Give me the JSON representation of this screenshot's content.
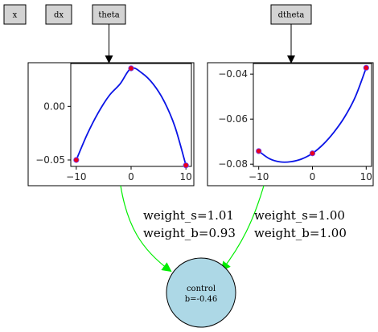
{
  "inputs": [
    {
      "id": "x",
      "label": "x"
    },
    {
      "id": "dx",
      "label": "dx"
    },
    {
      "id": "theta",
      "label": "theta"
    },
    {
      "id": "dtheta",
      "label": "dtheta"
    }
  ],
  "control": {
    "label": "control",
    "bias_text": "b=-0.46"
  },
  "edge_colors": {
    "input": "#000000",
    "output": "#00ee00"
  },
  "chart_data": [
    {
      "type": "line",
      "input": "theta",
      "title": "",
      "xlabel": "",
      "ylabel": "",
      "xlim": [
        -11,
        11
      ],
      "ylim": [
        -0.056,
        0.04
      ],
      "xticks": [
        -10,
        0,
        10
      ],
      "xtick_labels": [
        "−10",
        "0",
        "10"
      ],
      "yticks": [
        0.0,
        -0.05
      ],
      "ytick_labels": [
        "0.00",
        "−0.05"
      ],
      "series": [
        {
          "x": [
            -10,
            -8,
            -6,
            -4,
            -2,
            0,
            2,
            4,
            6,
            8,
            10
          ],
          "y": [
            -0.05,
            -0.026,
            -0.006,
            0.01,
            0.021,
            0.0355,
            0.031,
            0.021,
            0.005,
            -0.019,
            -0.055
          ],
          "color": "#0a14e6"
        }
      ],
      "points": {
        "x": [
          -10,
          0,
          10
        ],
        "y": [
          -0.05,
          0.0355,
          -0.055
        ],
        "color": "#e8001c"
      },
      "grid": false
    },
    {
      "type": "line",
      "input": "dtheta",
      "title": "",
      "xlabel": "",
      "ylabel": "",
      "xlim": [
        -11,
        11
      ],
      "ylim": [
        -0.081,
        -0.0353
      ],
      "xticks": [
        -10,
        0,
        10
      ],
      "xtick_labels": [
        "−10",
        "0",
        "10"
      ],
      "yticks": [
        -0.04,
        -0.06,
        -0.08
      ],
      "ytick_labels": [
        "−0.04",
        "−0.06",
        "−0.08"
      ],
      "series": [
        {
          "x": [
            -10,
            -8,
            -6,
            -4,
            -2,
            0,
            2,
            4,
            6,
            8,
            10
          ],
          "y": [
            -0.0742,
            -0.0776,
            -0.079,
            -0.0789,
            -0.0777,
            -0.0752,
            -0.0712,
            -0.0658,
            -0.059,
            -0.05,
            -0.0372
          ],
          "color": "#0a14e6"
        }
      ],
      "points": {
        "x": [
          -10,
          0,
          10
        ],
        "y": [
          -0.0742,
          -0.0752,
          -0.0372
        ],
        "color": "#e8001c"
      },
      "grid": false
    }
  ],
  "edges": [
    {
      "from": "theta",
      "to": "control",
      "weight_s": "weight_s=1.01",
      "weight_b": "weight_b=0.93"
    },
    {
      "from": "dtheta",
      "to": "control",
      "weight_s": "weight_s=1.00",
      "weight_b": "weight_b=1.00"
    }
  ]
}
